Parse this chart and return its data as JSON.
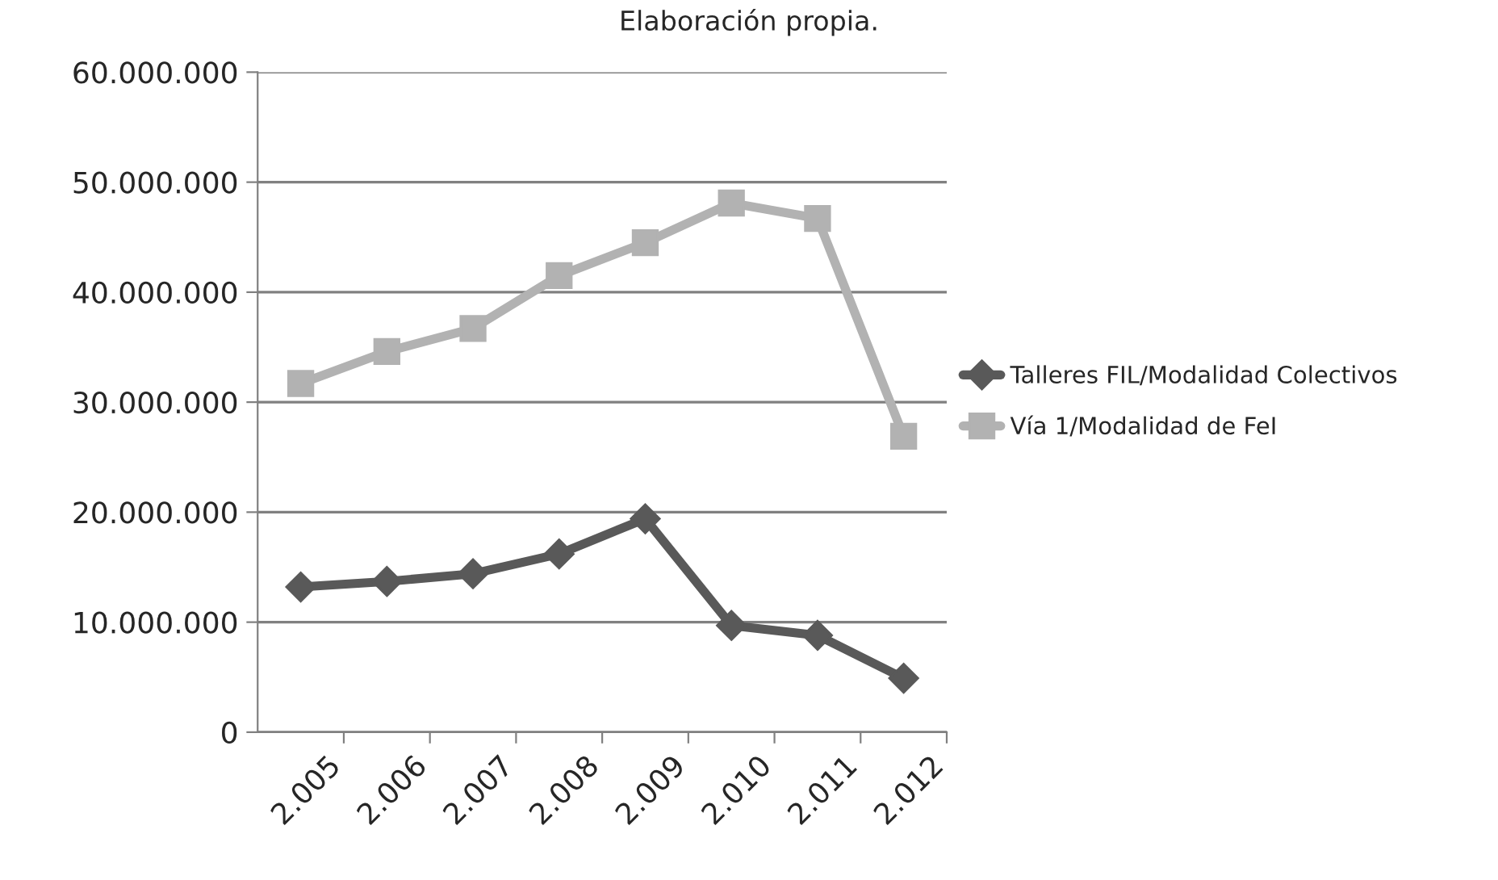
{
  "chart_data": {
    "type": "line",
    "annotations": [
      "Elaboración propia."
    ],
    "categories": [
      "2.005",
      "2.006",
      "2.007",
      "2.008",
      "2.009",
      "2.010",
      "2.011",
      "2.012"
    ],
    "series": [
      {
        "name": "Talleres FIL/Modalidad Colectivos",
        "color": "#595959",
        "marker": "diamond",
        "values": [
          13200000,
          13700000,
          14400000,
          16200000,
          19400000,
          9700000,
          8800000,
          4900000
        ]
      },
      {
        "name": "Vía 1/Modalidad de FeI",
        "color": "#b2b2b2",
        "marker": "square",
        "values": [
          31700000,
          34600000,
          36700000,
          41500000,
          44500000,
          48100000,
          46700000,
          26900000
        ]
      }
    ],
    "ylim": [
      0,
      60000000
    ],
    "yticks": [
      {
        "value": 0,
        "label": "0"
      },
      {
        "value": 10000000,
        "label": "10.000.000"
      },
      {
        "value": 20000000,
        "label": "20.000.000"
      },
      {
        "value": 30000000,
        "label": "30.000.000"
      },
      {
        "value": 40000000,
        "label": "40.000.000"
      },
      {
        "value": 50000000,
        "label": "50.000.000"
      },
      {
        "value": 60000000,
        "label": "60.000.000"
      }
    ],
    "grid": "y",
    "legend": "right"
  }
}
